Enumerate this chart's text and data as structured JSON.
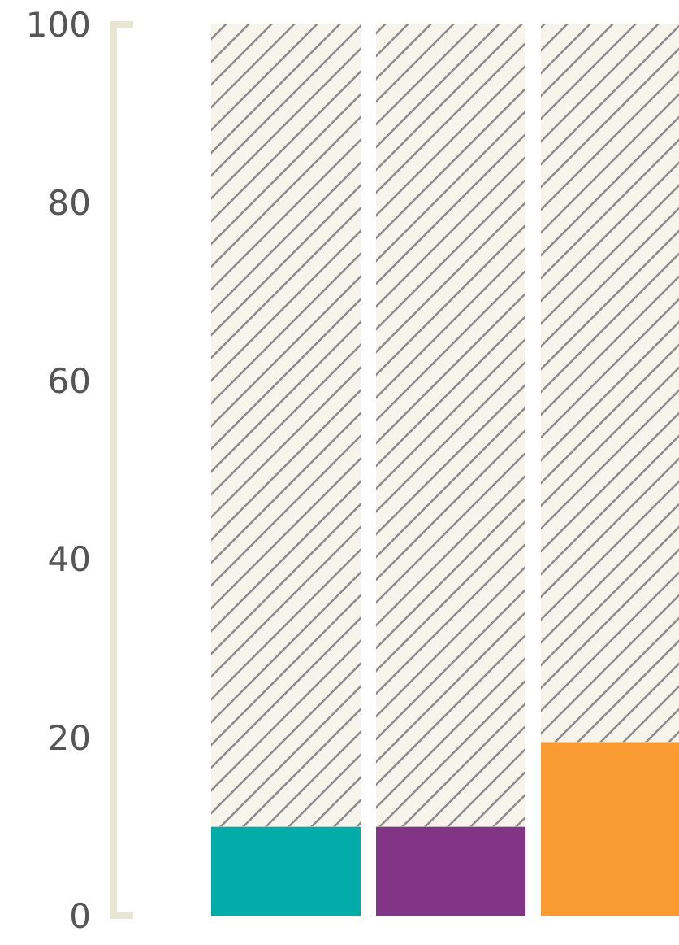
{
  "chart_data": {
    "type": "bar",
    "stacked": true,
    "categories": [
      null,
      null,
      null
    ],
    "ylim": [
      0,
      100
    ],
    "yticks": [
      0,
      20,
      40,
      60,
      80,
      100
    ],
    "grid": false,
    "series": [
      {
        "colors": [
          "#02aca9",
          "#823486",
          "#f99b31"
        ],
        "values": [
          10,
          10,
          19.5
        ]
      },
      {
        "color": "#f7f4ec",
        "values": [
          90,
          90,
          80.5
        ]
      }
    ]
  }
}
